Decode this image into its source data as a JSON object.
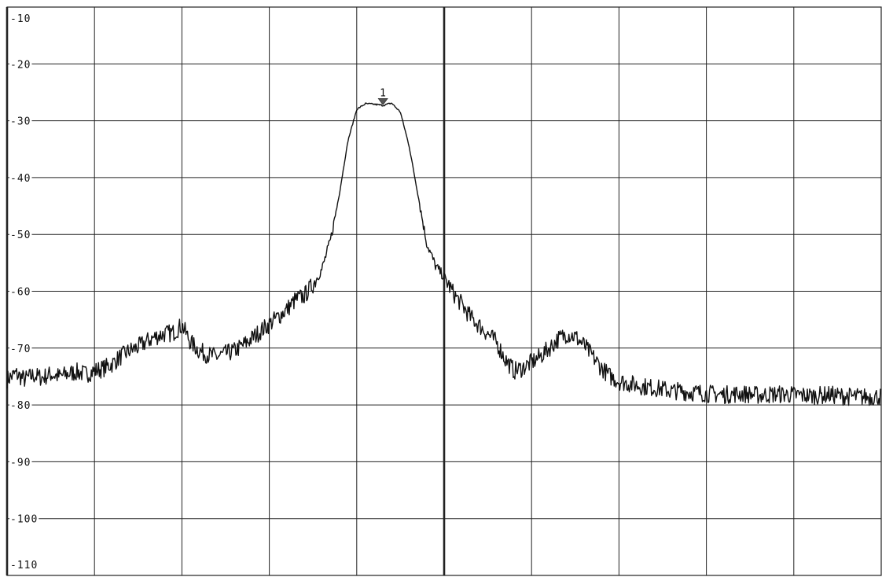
{
  "chart_data": {
    "type": "line",
    "title": "",
    "xlabel": "",
    "ylabel": "",
    "xlim": [
      0,
      10
    ],
    "ylim": [
      -110,
      -10
    ],
    "y_tick_labels": [
      "-10",
      "-20",
      "-30",
      "-40",
      "-50",
      "-60",
      "-70",
      "-80",
      "-90",
      "-100",
      "-110"
    ],
    "grid": true,
    "x_divisions": 10,
    "colors": {
      "trace": "#111111",
      "grid": "#222222",
      "background": "#ffffff",
      "marker": "#555555"
    },
    "series": [
      {
        "x": [
          0,
          0.1,
          0.2,
          0.3,
          0.4,
          0.5,
          0.6,
          0.7,
          0.8,
          0.9,
          1.0,
          1.1,
          1.2,
          1.3,
          1.4,
          1.5,
          1.6,
          1.7,
          1.8,
          1.9,
          2.0,
          2.05,
          2.1,
          2.2,
          2.3,
          2.4,
          2.5,
          2.6,
          2.7,
          2.8,
          2.9,
          3.0,
          3.1,
          3.2,
          3.3,
          3.4,
          3.5,
          3.6,
          3.7,
          3.8,
          3.9,
          4.0,
          4.1,
          4.2,
          4.3,
          4.4,
          4.5,
          4.6,
          4.7,
          4.8,
          4.9,
          5.0,
          5.1,
          5.2,
          5.3,
          5.4,
          5.5,
          5.6,
          5.7,
          5.8,
          5.9,
          6.0,
          6.1,
          6.2,
          6.3,
          6.4,
          6.5,
          6.6,
          6.7,
          6.8,
          6.9,
          7.0,
          7.1,
          7.2,
          7.3,
          7.4,
          7.5,
          7.6,
          7.7,
          7.8,
          7.9,
          8.0,
          8.2,
          8.4,
          8.6,
          8.8,
          9.0,
          9.2,
          9.4,
          9.6,
          9.8,
          10.0
        ],
        "y": [
          -75.5,
          -74.5,
          -75.5,
          -74.8,
          -75.2,
          -74.6,
          -75.0,
          -74.5,
          -74.2,
          -74.6,
          -74.0,
          -73.6,
          -72.8,
          -71.5,
          -70.5,
          -69.8,
          -68.8,
          -68.0,
          -67.5,
          -67.3,
          -66.0,
          -67.5,
          -69.0,
          -70.5,
          -71.2,
          -71.5,
          -71.0,
          -70.5,
          -69.5,
          -68.3,
          -67.0,
          -65.8,
          -64.5,
          -63.2,
          -61.5,
          -60.8,
          -58.8,
          -56.2,
          -51.0,
          -43.0,
          -33.5,
          -28.0,
          -27.0,
          -27.1,
          -27.3,
          -26.9,
          -28.5,
          -34.5,
          -43.0,
          -51.5,
          -55.5,
          -57.5,
          -60.2,
          -62.3,
          -64.5,
          -66.0,
          -67.5,
          -69.0,
          -72.0,
          -74.0,
          -73.5,
          -72.5,
          -71.5,
          -70.0,
          -68.5,
          -67.5,
          -68.0,
          -69.5,
          -71.5,
          -73.5,
          -75.0,
          -75.8,
          -76.2,
          -76.5,
          -76.8,
          -77.0,
          -77.2,
          -77.6,
          -77.5,
          -77.8,
          -77.8,
          -78.0,
          -78.2,
          -78.0,
          -78.3,
          -78.1,
          -78.2,
          -78.4,
          -78.2,
          -78.5,
          -78.6,
          -78.5
        ]
      }
    ],
    "annotations": [
      {
        "label": "1",
        "x": 4.3,
        "y": -27.2,
        "kind": "marker"
      }
    ]
  }
}
